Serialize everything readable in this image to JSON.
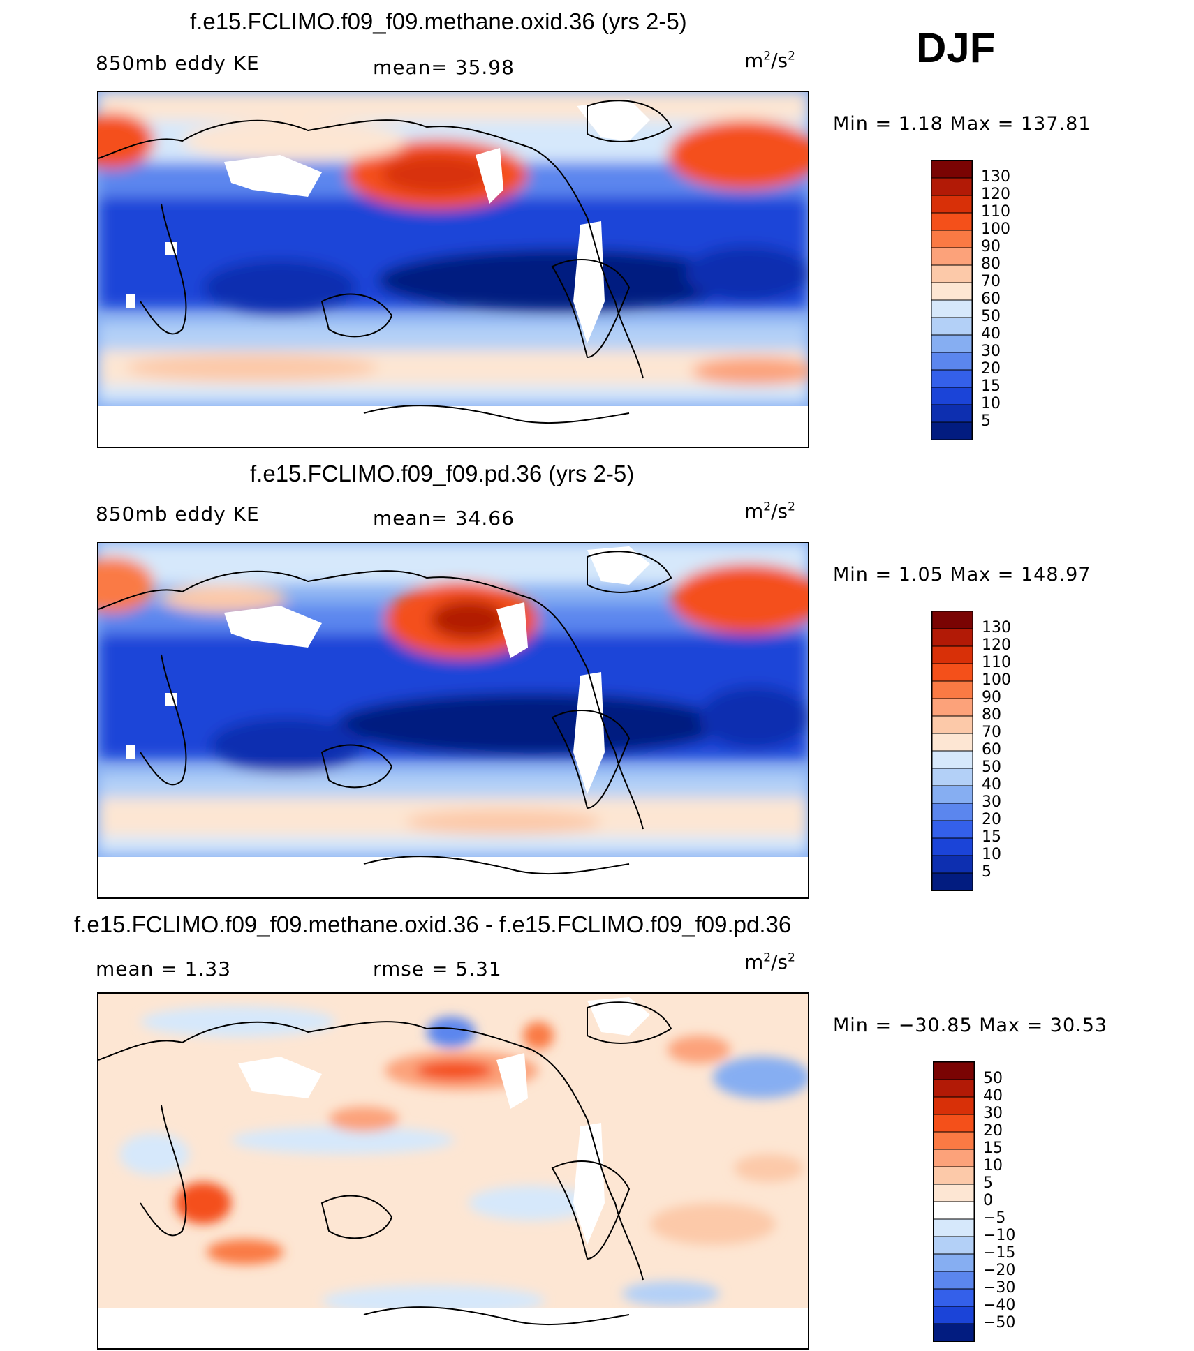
{
  "season": "DJF",
  "panels": [
    {
      "title": "f.e15.FCLIMO.f09_f09.methane.oxid.36 (yrs 2-5)",
      "left_label": "850mb eddy KE",
      "center_label": "mean=   35.98",
      "units": {
        "base": "m",
        "exp1": "2",
        "sep": "/s",
        "exp2": "2"
      },
      "minmax": "Min =    1.18 Max = 137.81",
      "colorbar_levels": [
        "130",
        "120",
        "110",
        "100",
        "90",
        "80",
        "70",
        "60",
        "50",
        "40",
        "30",
        "20",
        "15",
        "10",
        "5"
      ],
      "colors": [
        "#7a0403",
        "#b21a06",
        "#d83008",
        "#f4501a",
        "#fa7a44",
        "#fca27a",
        "#fcc9a9",
        "#fde6d3",
        "#d6e8fb",
        "#b3d0f7",
        "#86aef2",
        "#5b86ee",
        "#3460ea",
        "#1b44d8",
        "#0d2fb0",
        "#021c80"
      ]
    },
    {
      "title": "f.e15.FCLIMO.f09_f09.pd.36 (yrs 2-5)",
      "left_label": "850mb eddy KE",
      "center_label": "mean=   34.66",
      "units": {
        "base": "m",
        "exp1": "2",
        "sep": "/s",
        "exp2": "2"
      },
      "minmax": "Min =    1.05 Max = 148.97",
      "colorbar_levels": [
        "130",
        "120",
        "110",
        "100",
        "90",
        "80",
        "70",
        "60",
        "50",
        "40",
        "30",
        "20",
        "15",
        "10",
        "5"
      ],
      "colors": [
        "#7a0403",
        "#b21a06",
        "#d83008",
        "#f4501a",
        "#fa7a44",
        "#fca27a",
        "#fcc9a9",
        "#fde6d3",
        "#d6e8fb",
        "#b3d0f7",
        "#86aef2",
        "#5b86ee",
        "#3460ea",
        "#1b44d8",
        "#0d2fb0",
        "#021c80"
      ]
    },
    {
      "title": "f.e15.FCLIMO.f09_f09.methane.oxid.36 - f.e15.FCLIMO.f09_f09.pd.36",
      "left_label": "mean =    1.33",
      "center_label": "rmse =    5.31",
      "units": {
        "base": "m",
        "exp1": "2",
        "sep": "/s",
        "exp2": "2"
      },
      "minmax": "Min = −30.85 Max =   30.53",
      "colorbar_levels": [
        "50",
        "40",
        "30",
        "20",
        "15",
        "10",
        "5",
        "0",
        "−5",
        "−10",
        "−15",
        "−20",
        "−30",
        "−40",
        "−50"
      ],
      "colors": [
        "#7a0403",
        "#b21a06",
        "#d83008",
        "#f4501a",
        "#fa7a44",
        "#fca27a",
        "#fcc9a9",
        "#fde6d3",
        "#ffffff",
        "#d6e8fb",
        "#b3d0f7",
        "#86aef2",
        "#5b86ee",
        "#3460ea",
        "#1b44d8",
        "#021c80"
      ]
    }
  ]
}
